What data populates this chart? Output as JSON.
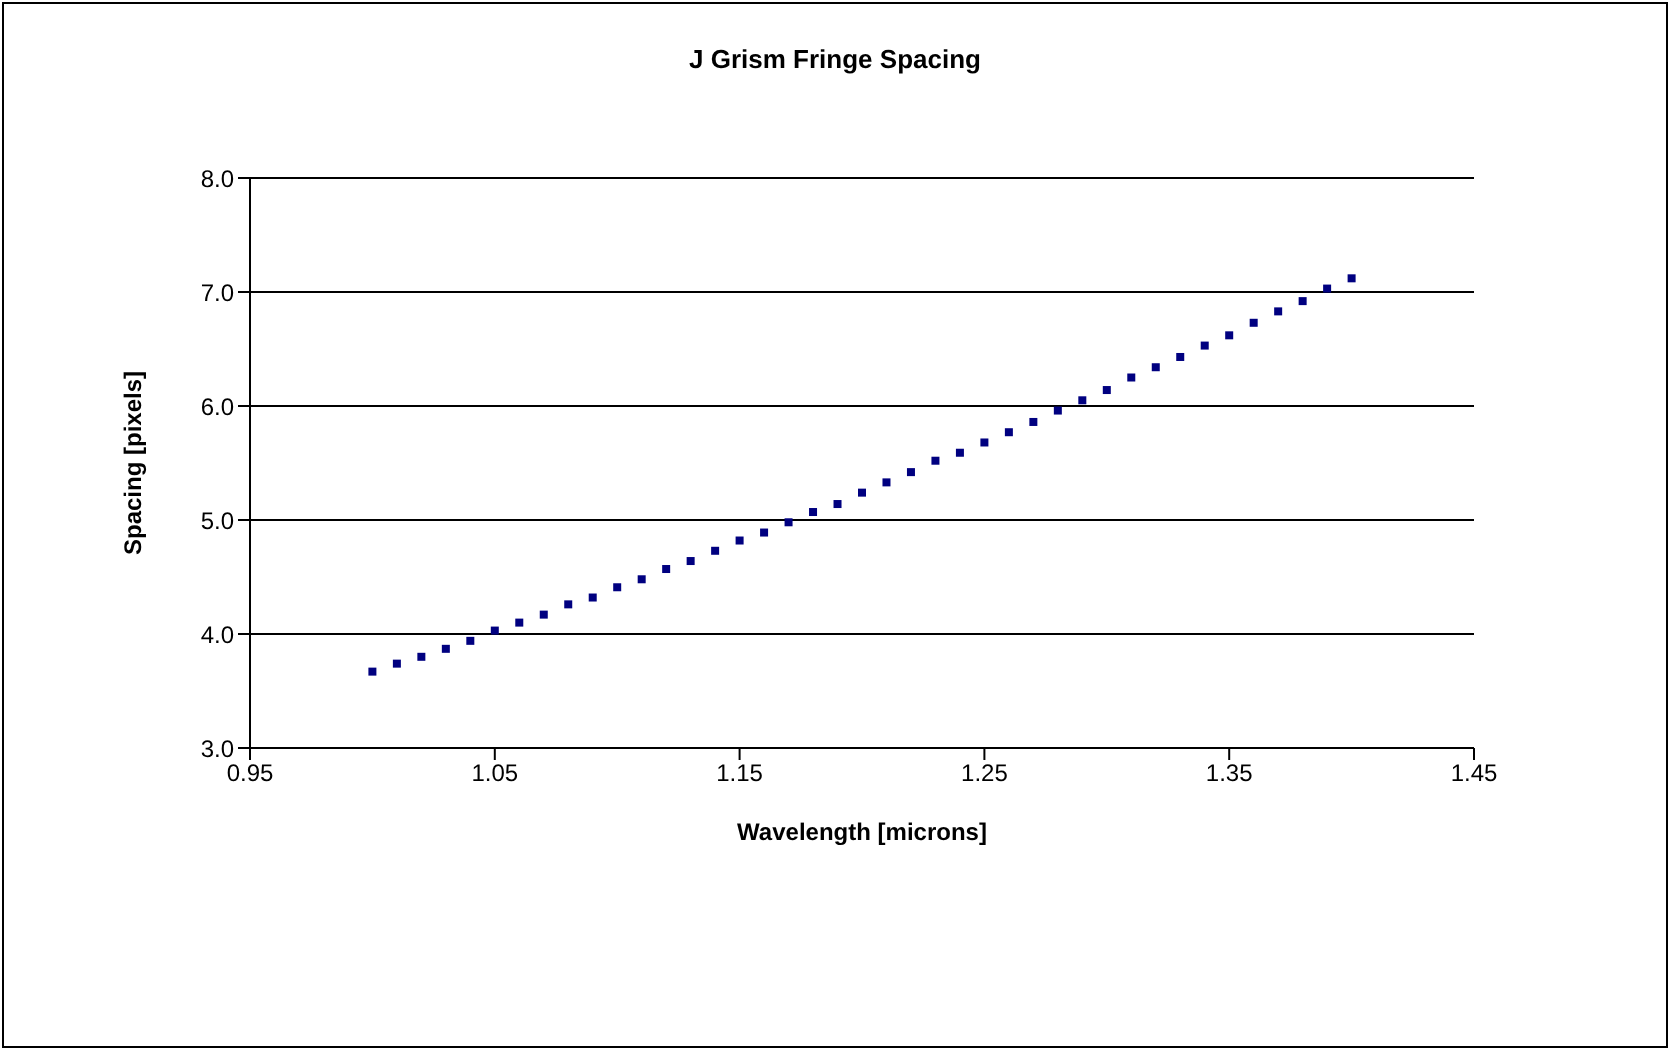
{
  "chart_data": {
    "type": "scatter",
    "title": "J Grism Fringe Spacing",
    "xlabel": "Wavelength [microns]",
    "ylabel": "Spacing [pixels]",
    "x": [
      1.0,
      1.01,
      1.02,
      1.03,
      1.04,
      1.05,
      1.06,
      1.07,
      1.08,
      1.09,
      1.1,
      1.11,
      1.12,
      1.13,
      1.14,
      1.15,
      1.16,
      1.17,
      1.18,
      1.19,
      1.2,
      1.21,
      1.22,
      1.23,
      1.24,
      1.25,
      1.26,
      1.27,
      1.28,
      1.29,
      1.3,
      1.31,
      1.32,
      1.33,
      1.34,
      1.35,
      1.36,
      1.37,
      1.38,
      1.39,
      1.4
    ],
    "series": [
      {
        "color": "#000080",
        "values": [
          3.67,
          3.74,
          3.8,
          3.87,
          3.94,
          4.03,
          4.1,
          4.17,
          4.26,
          4.32,
          4.41,
          4.48,
          4.57,
          4.64,
          4.73,
          4.82,
          4.89,
          4.98,
          5.07,
          5.14,
          5.24,
          5.33,
          5.42,
          5.52,
          5.59,
          5.68,
          5.77,
          5.86,
          5.96,
          6.05,
          6.14,
          6.25,
          6.34,
          6.43,
          6.53,
          6.62,
          6.73,
          6.83,
          6.92,
          7.03,
          7.12
        ]
      }
    ],
    "xlim": [
      0.95,
      1.45
    ],
    "xticks": [
      0.95,
      1.05,
      1.15,
      1.25,
      1.35,
      1.45
    ],
    "ylim": [
      3,
      8
    ],
    "yticks": [
      {
        "value": 3,
        "label": "3.0"
      },
      {
        "value": 4,
        "label": "4.0"
      },
      {
        "value": 5,
        "label": "5.0"
      },
      {
        "value": 6,
        "label": "6.0"
      },
      {
        "value": 7,
        "label": "7.0"
      },
      {
        "value": 8,
        "label": "8.0"
      }
    ],
    "grid": "y",
    "legend": false,
    "marker": "square"
  }
}
